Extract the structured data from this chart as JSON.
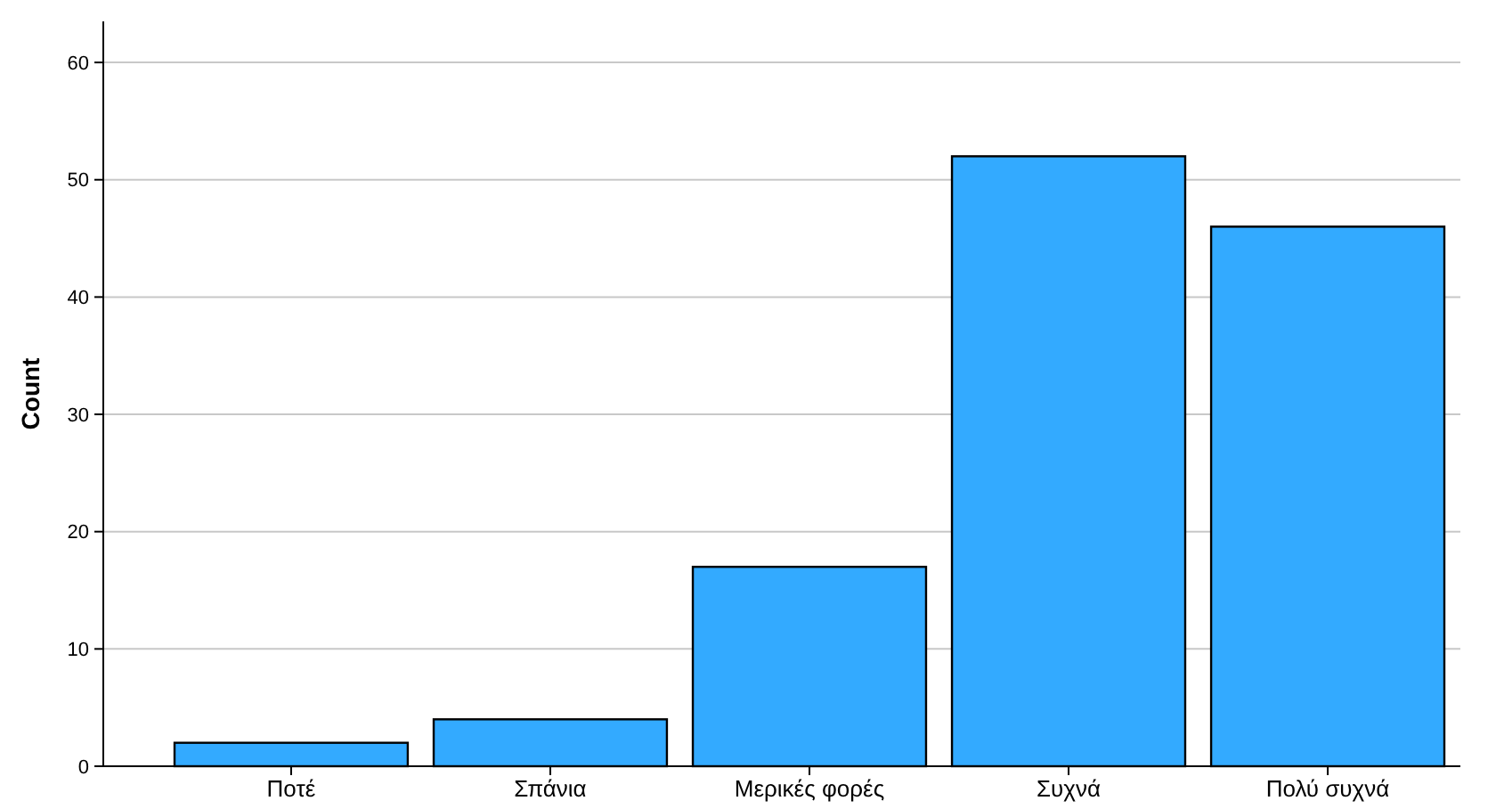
{
  "chart_data": {
    "type": "bar",
    "ylabel": "Count",
    "categories": [
      "Ποτέ",
      "Σπάνια",
      "Μερικές φορές",
      "Συχνά",
      "Πολύ συχνά"
    ],
    "values": [
      2,
      4,
      17,
      52,
      46
    ],
    "color": "#33aaff",
    "ylim": [
      0,
      63.5
    ],
    "yticks": [
      0,
      10,
      20,
      30,
      40,
      50,
      60
    ],
    "grid": "y"
  }
}
